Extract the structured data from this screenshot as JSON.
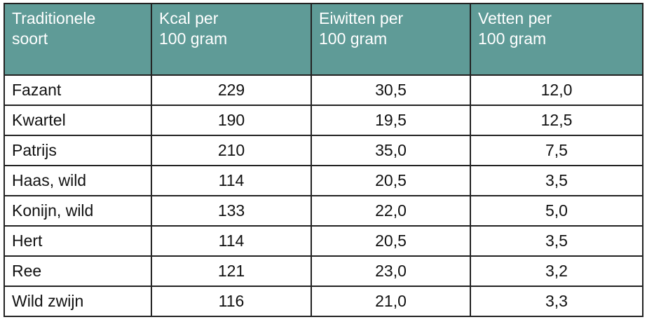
{
  "table": {
    "headers": [
      "Traditionele\nsoort",
      "Kcal per\n100 gram",
      "Eiwitten per\n100 gram",
      "Vetten per\n100 gram"
    ],
    "rows": [
      [
        "Fazant",
        "229",
        "30,5",
        "12,0"
      ],
      [
        "Kwartel",
        "190",
        "19,5",
        "12,5"
      ],
      [
        "Patrijs",
        "210",
        "35,0",
        "7,5"
      ],
      [
        "Haas, wild",
        "114",
        "20,5",
        "3,5"
      ],
      [
        "Konijn, wild",
        "133",
        "22,0",
        "5,0"
      ],
      [
        "Hert",
        "114",
        "20,5",
        "3,5"
      ],
      [
        "Ree",
        "121",
        "23,0",
        "3,2"
      ],
      [
        "Wild zwijn",
        "116",
        "21,0",
        "3,3"
      ]
    ]
  }
}
